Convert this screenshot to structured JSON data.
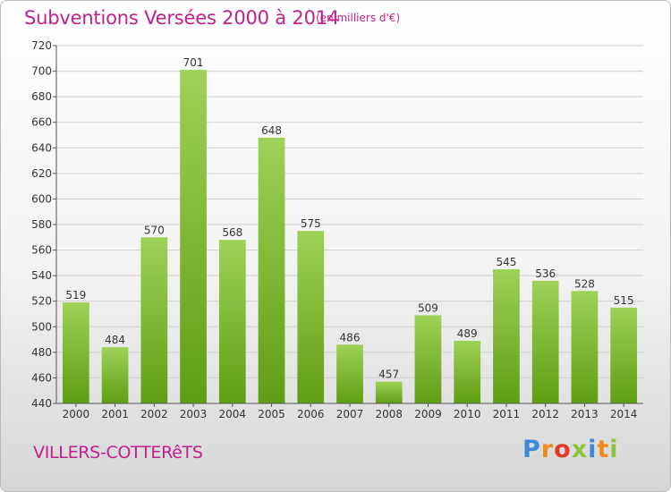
{
  "title": "Subventions Versées 2000 à 2014",
  "subtitle": "(en milliers d'€)",
  "commune": "VILLERS-COTTERêTS",
  "logo": {
    "text": "Proxiti",
    "letters": [
      "P",
      "r",
      "o",
      "x",
      "i",
      "t",
      "i"
    ],
    "colors": [
      "#3a8ad6",
      "#f08a1e",
      "#e23b2c",
      "#8bc53f",
      "#3a8ad6",
      "#f08a1e",
      "#8bc53f"
    ]
  },
  "colors": {
    "title": "#c1208a",
    "bar_top": "#9ed158",
    "bar_bottom": "#5f9e12",
    "grid": "#cfcfcf"
  },
  "chart_data": {
    "type": "bar",
    "title": "Subventions Versées 2000 à 2014",
    "subtitle": "(en milliers d'€)",
    "categories": [
      "2000",
      "2001",
      "2002",
      "2003",
      "2004",
      "2005",
      "2006",
      "2007",
      "2008",
      "2009",
      "2010",
      "2011",
      "2012",
      "2013",
      "2014"
    ],
    "values": [
      519,
      484,
      570,
      701,
      568,
      648,
      575,
      486,
      457,
      509,
      489,
      545,
      536,
      528,
      515
    ],
    "ylim": [
      440,
      720
    ],
    "yticks": [
      440,
      460,
      480,
      500,
      520,
      540,
      560,
      580,
      600,
      620,
      640,
      660,
      680,
      700,
      720
    ],
    "grid": true,
    "data_labels": true
  }
}
